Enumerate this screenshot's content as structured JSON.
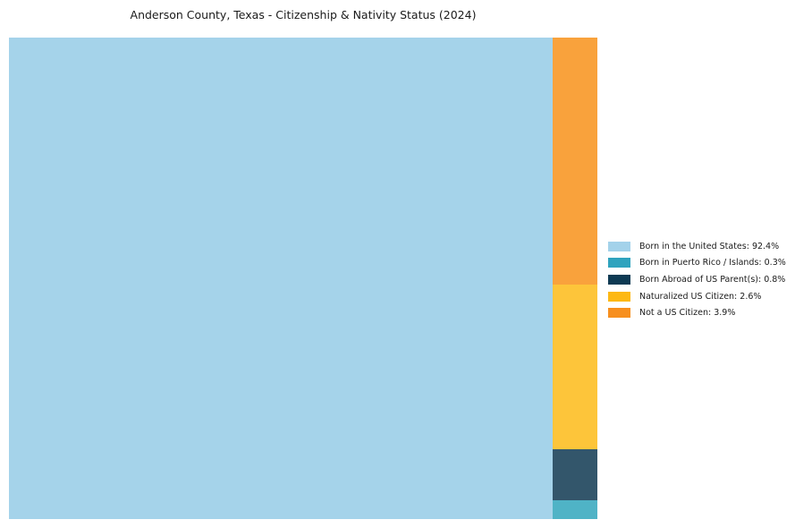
{
  "page": {
    "background_color": "#ffffff",
    "text_color": "#1a1a1a"
  },
  "header": {
    "title": "Anderson County, Texas - Citizenship & Nativity Status (2024)"
  },
  "chart_data": {
    "type": "treemap",
    "title": "Anderson County, Texas - Citizenship & Nativity Status (2024)",
    "unit": "percent",
    "total": 100,
    "legend_position": "right",
    "layout_hint": "largest category fills full chart height on the left; remaining categories stacked top-to-bottom by descending value in a narrow right column; no axes, no gridlines, no frame",
    "series": [
      {
        "name": "Born in the United States",
        "value": 92.4,
        "label": "Born in the United States: 92.4%",
        "tile_color": "#A5D3EA",
        "legend_color": "#A3D2EA"
      },
      {
        "name": "Born in Puerto Rico / Islands",
        "value": 0.3,
        "label": "Born in Puerto Rico / Islands: 0.3%",
        "tile_color": "#4FB3C6",
        "legend_color": "#2FA3BE"
      },
      {
        "name": "Born Abroad of US Parent(s)",
        "value": 0.8,
        "label": "Born Abroad of US Parent(s): 0.8%",
        "tile_color": "#33566B",
        "legend_color": "#0E3A53"
      },
      {
        "name": "Naturalized US Citizen",
        "value": 2.6,
        "label": "Naturalized US Citizen: 2.6%",
        "tile_color": "#FDC53A",
        "legend_color": "#FDB813"
      },
      {
        "name": "Not a US Citizen",
        "value": 3.9,
        "label": "Not a US Citizen: 3.9%",
        "tile_color": "#F9A23C",
        "legend_color": "#F78F1E"
      }
    ]
  }
}
